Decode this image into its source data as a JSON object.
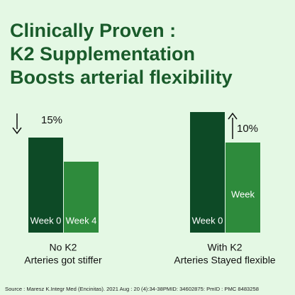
{
  "chart_data": {
    "type": "bar",
    "title_lines": [
      "Clinically Proven :",
      "K2 Supplementation",
      "Boosts arterial flexibility"
    ],
    "colors": [
      "#0d4a26",
      "#2e8b3c"
    ],
    "ylim": [
      0,
      170
    ],
    "groups": [
      {
        "name": "No K2",
        "caption": "Arteries got stiffer",
        "categories": [
          "Week 0",
          "Week 4"
        ],
        "values": [
          134,
          100
        ],
        "change": {
          "value": 15,
          "label": "15%"
        },
        "direction": "down"
      },
      {
        "name": "With K2",
        "caption": "Arteries Stayed flexible",
        "categories": [
          "Week 0",
          "Week"
        ],
        "values": [
          170,
          127
        ],
        "change": {
          "value": 10,
          "label": "10%"
        },
        "direction": "up"
      }
    ],
    "source": "Source : Maresz K.Integr Med (Encinitas). 2021 Aug : 20 (4):34-38PMID: 34602875: PmID : PMC 8483258"
  }
}
